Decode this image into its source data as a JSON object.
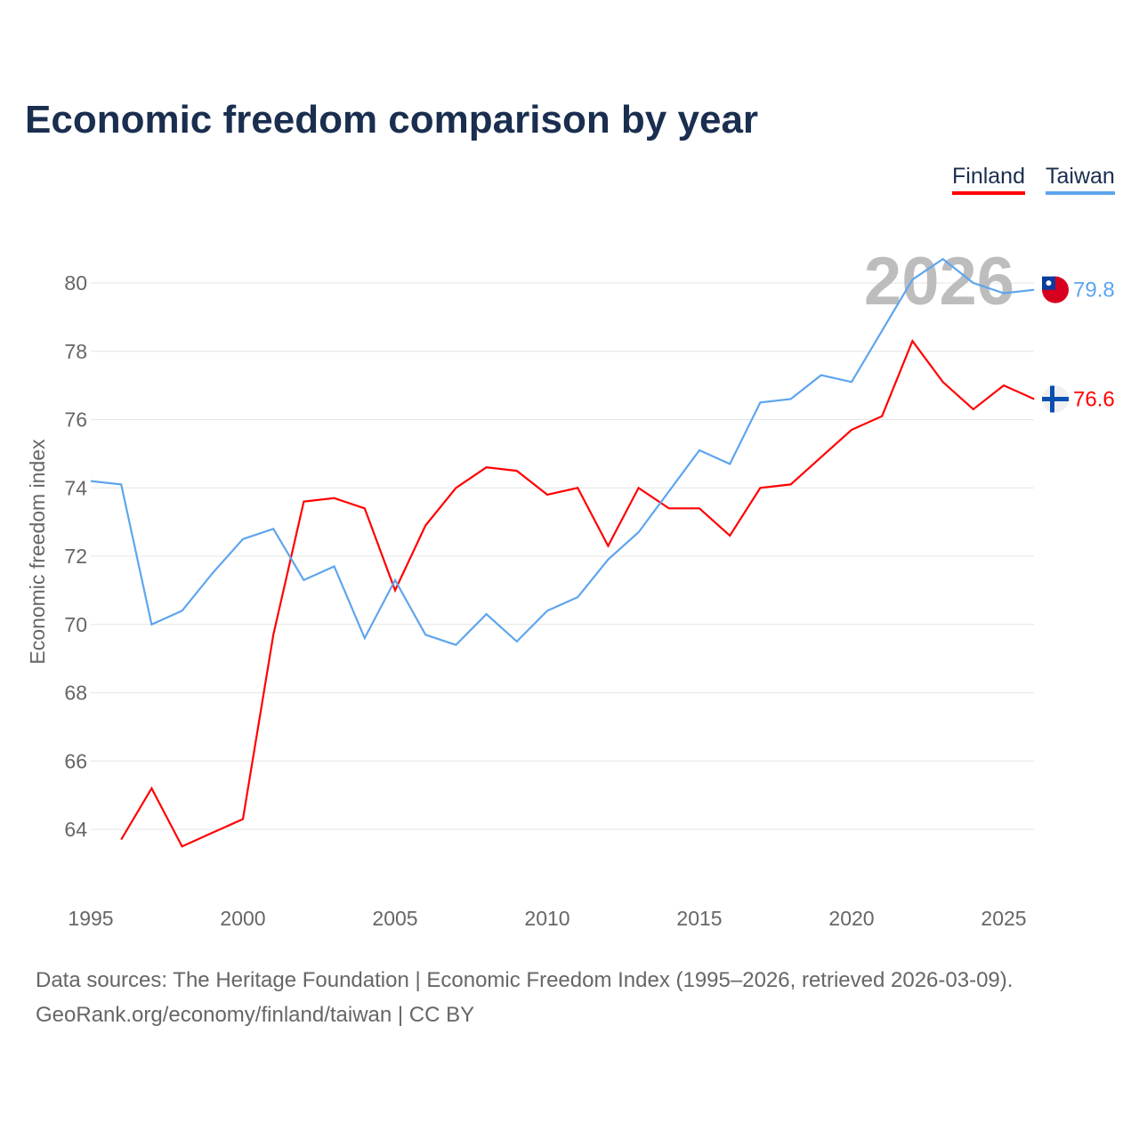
{
  "title": "Economic freedom comparison by year",
  "footer": {
    "line1": "Data sources: The Heritage Foundation | Economic Freedom Index (1995–2026, retrieved 2026-03-09).",
    "line2": "GeoRank.org/economy/finland/taiwan | CC BY"
  },
  "chart_data": {
    "type": "line",
    "title": "Economic freedom comparison by year",
    "xlabel": "",
    "ylabel": "Economic freedom index",
    "year_label": "2026",
    "xlim": [
      1995,
      2026
    ],
    "ylim": [
      62,
      82
    ],
    "x_ticks": [
      "1995",
      "2000",
      "2005",
      "2010",
      "2015",
      "2020",
      "2025"
    ],
    "y_ticks": [
      "64",
      "66",
      "68",
      "70",
      "72",
      "74",
      "76",
      "78",
      "80"
    ],
    "grid": true,
    "legend_position": "top-right",
    "x": [
      1995,
      1996,
      1997,
      1998,
      1999,
      2000,
      2001,
      2002,
      2003,
      2004,
      2005,
      2006,
      2007,
      2008,
      2009,
      2010,
      2011,
      2012,
      2013,
      2014,
      2015,
      2016,
      2017,
      2018,
      2019,
      2020,
      2021,
      2022,
      2023,
      2024,
      2025,
      2026
    ],
    "series": [
      {
        "name": "Finland",
        "color": "#ff0000",
        "end_label": "76.6",
        "flag": "finland-flag",
        "values": [
          null,
          63.7,
          65.2,
          63.5,
          63.9,
          64.3,
          69.7,
          73.6,
          73.7,
          73.4,
          71.0,
          72.9,
          74.0,
          74.6,
          74.5,
          73.8,
          74.0,
          72.3,
          74.0,
          73.4,
          73.4,
          72.6,
          74.0,
          74.1,
          74.9,
          75.7,
          76.1,
          78.3,
          77.1,
          76.3,
          77.0,
          76.6
        ]
      },
      {
        "name": "Taiwan",
        "color": "#5ea5ee",
        "end_label": "79.8",
        "flag": "taiwan-flag",
        "values": [
          74.2,
          74.1,
          70.0,
          70.4,
          71.5,
          72.5,
          72.8,
          71.3,
          71.7,
          69.6,
          71.3,
          69.7,
          69.4,
          70.3,
          69.5,
          70.4,
          70.8,
          71.9,
          72.7,
          73.9,
          75.1,
          74.7,
          76.5,
          76.6,
          77.3,
          77.1,
          78.6,
          80.1,
          80.7,
          80.0,
          79.7,
          79.8
        ]
      }
    ]
  }
}
